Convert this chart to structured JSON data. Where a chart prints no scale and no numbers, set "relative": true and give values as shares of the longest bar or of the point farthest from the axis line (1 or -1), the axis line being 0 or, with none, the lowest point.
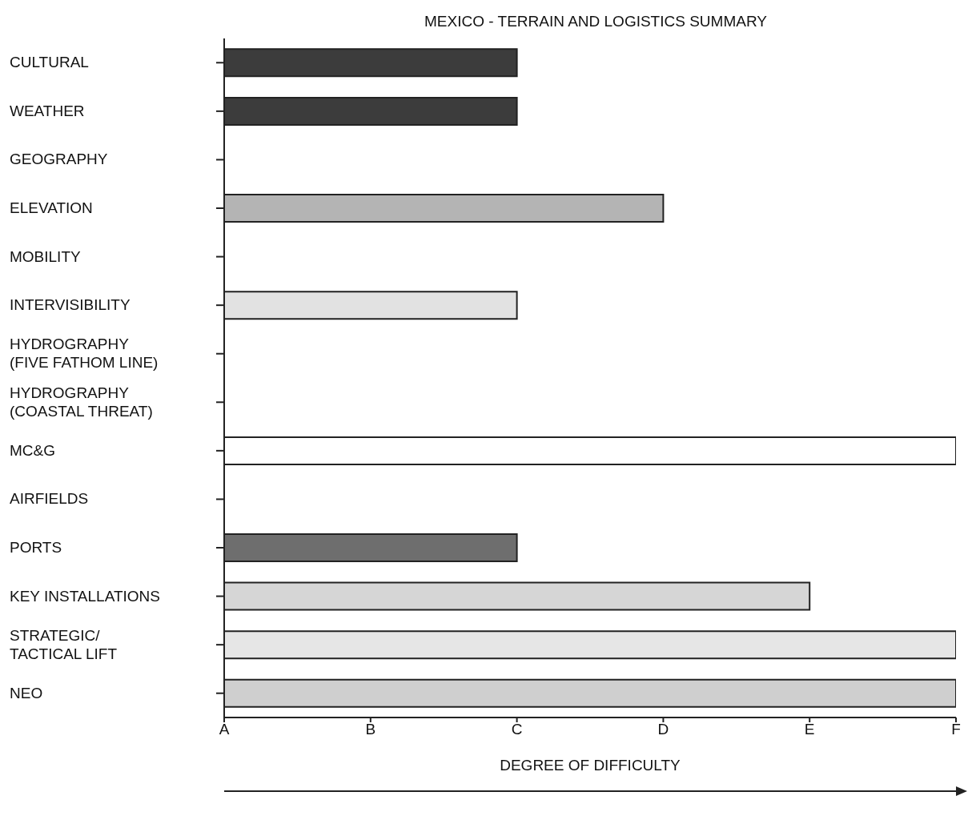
{
  "chart_data": {
    "type": "bar",
    "orientation": "horizontal",
    "title": "MEXICO - TERRAIN AND LOGISTICS SUMMARY",
    "xlabel": "DEGREE OF DIFFICULTY",
    "categories": [
      "CULTURAL",
      "WEATHER",
      "GEOGRAPHY",
      "ELEVATION",
      "MOBILITY",
      "INTERVISIBILITY",
      "HYDROGRAPHY\n(FIVE FATHOM LINE)",
      "HYDROGRAPHY\n(COASTAL THREAT)",
      "MC&G",
      "AIRFIELDS",
      "PORTS",
      "KEY INSTALLATIONS",
      "STRATEGIC/\nTACTICAL LIFT",
      "NEO"
    ],
    "values": [
      0.4,
      0.4,
      null,
      0.6,
      null,
      0.4,
      null,
      null,
      1,
      null,
      0.4,
      0.8,
      1,
      1
    ],
    "relative": true,
    "colors": [
      "#3c3c3c",
      "#3c3c3c",
      null,
      "#b4b4b4",
      null,
      "#e2e2e2",
      null,
      null,
      "#ffffff",
      null,
      "#6e6e6e",
      "#d6d6d6",
      "#e6e6e6",
      "#cfcfcf"
    ],
    "annotations": [
      "A",
      "B",
      "C",
      "D",
      "E",
      "F"
    ],
    "grid": false,
    "legend": false
  }
}
